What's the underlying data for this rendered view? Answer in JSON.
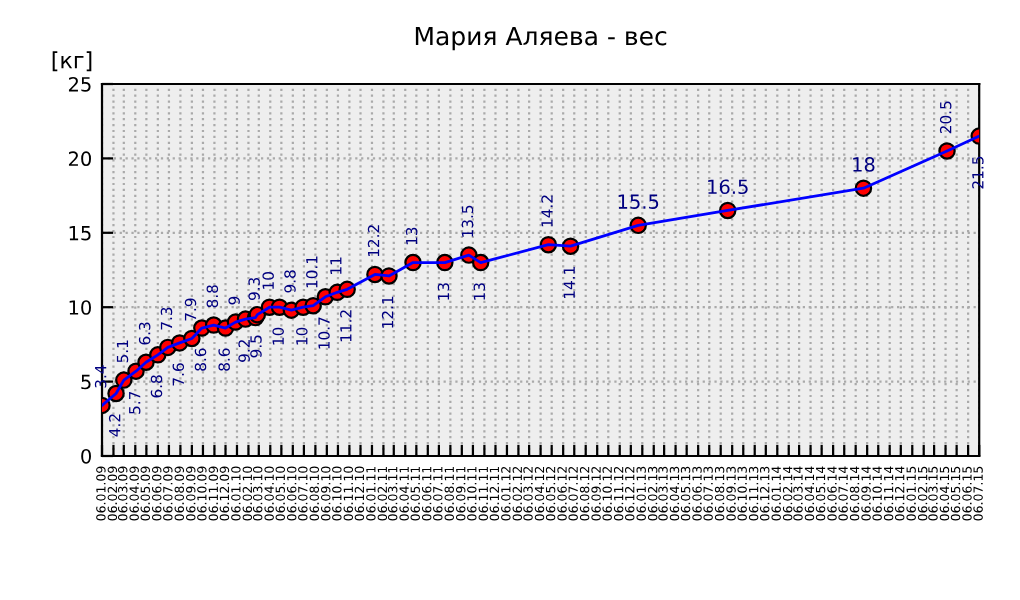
{
  "chart_data": {
    "type": "line",
    "title": "Мария Аляева - вес",
    "ylabel": "[кг]",
    "x": [
      "2009-01-06",
      "2009-02-13",
      "2009-03-06",
      "2009-04-08",
      "2009-05-05",
      "2009-06-06",
      "2009-07-03",
      "2009-08-04",
      "2009-09-06",
      "2009-10-03",
      "2009-11-04",
      "2009-12-06",
      "2010-01-02",
      "2010-01-29",
      "2010-02-25",
      "2010-03-02",
      "2010-04-04",
      "2010-05-01",
      "2010-06-02",
      "2010-07-04",
      "2010-07-31",
      "2010-09-02",
      "2010-10-04",
      "2010-10-31",
      "2011-01-14",
      "2011-02-21",
      "2011-04-27",
      "2011-07-22",
      "2011-09-25",
      "2011-10-27",
      "2012-04-27",
      "2012-06-26",
      "2012-12-26",
      "2013-08-25",
      "2014-08-27",
      "2015-04-10",
      "2015-07-06"
    ],
    "series": [
      {
        "color": "#0000ff",
        "values": [
          3.4,
          4.2,
          5.1,
          5.7,
          6.3,
          6.8,
          7.3,
          7.6,
          7.9,
          8.6,
          8.8,
          8.6,
          9,
          9.2,
          9.3,
          9.5,
          10,
          10,
          9.8,
          10,
          10.1,
          10.7,
          11,
          11.2,
          12.2,
          12.1,
          13,
          13,
          13.5,
          13,
          14.2,
          14.1,
          15.5,
          16.5,
          18,
          20.5,
          21.5
        ]
      }
    ],
    "xlim": [
      "2009-01-06",
      "2015-07-06"
    ],
    "ylim": [
      0,
      25
    ],
    "yticks": [
      0,
      5,
      10,
      15,
      20,
      25
    ],
    "xticks": [
      {
        "value": "2009-01-06",
        "label": "06.01.09"
      },
      {
        "value": "2009-02-06",
        "label": "06.02.09"
      },
      {
        "value": "2009-03-06",
        "label": "06.03.09"
      },
      {
        "value": "2009-04-06",
        "label": "06.04.09"
      },
      {
        "value": "2009-05-06",
        "label": "06.05.09"
      },
      {
        "value": "2009-06-06",
        "label": "06.06.09"
      },
      {
        "value": "2009-07-06",
        "label": "06.07.09"
      },
      {
        "value": "2009-08-06",
        "label": "06.08.09"
      },
      {
        "value": "2009-09-06",
        "label": "06.09.09"
      },
      {
        "value": "2009-10-06",
        "label": "06.10.09"
      },
      {
        "value": "2009-11-06",
        "label": "06.11.09"
      },
      {
        "value": "2009-12-06",
        "label": "06.12.09"
      },
      {
        "value": "2010-01-06",
        "label": "06.01.10"
      },
      {
        "value": "2010-02-06",
        "label": "06.02.10"
      },
      {
        "value": "2010-03-06",
        "label": "06.03.10"
      },
      {
        "value": "2010-04-06",
        "label": "06.04.10"
      },
      {
        "value": "2010-05-06",
        "label": "06.05.10"
      },
      {
        "value": "2010-06-06",
        "label": "06.06.10"
      },
      {
        "value": "2010-07-06",
        "label": "06.07.10"
      },
      {
        "value": "2010-08-06",
        "label": "06.08.10"
      },
      {
        "value": "2010-09-06",
        "label": "06.09.10"
      },
      {
        "value": "2010-10-06",
        "label": "06.10.10"
      },
      {
        "value": "2010-11-06",
        "label": "06.11.10"
      },
      {
        "value": "2010-12-06",
        "label": "06.12.10"
      },
      {
        "value": "2011-01-06",
        "label": "06.01.11"
      },
      {
        "value": "2011-02-06",
        "label": "06.02.11"
      },
      {
        "value": "2011-03-06",
        "label": "06.03.11"
      },
      {
        "value": "2011-04-06",
        "label": "06.04.11"
      },
      {
        "value": "2011-05-06",
        "label": "06.05.11"
      },
      {
        "value": "2011-06-06",
        "label": "06.06.11"
      },
      {
        "value": "2011-07-06",
        "label": "06.07.11"
      },
      {
        "value": "2011-08-06",
        "label": "06.08.11"
      },
      {
        "value": "2011-09-06",
        "label": "06.09.11"
      },
      {
        "value": "2011-10-06",
        "label": "06.10.11"
      },
      {
        "value": "2011-11-06",
        "label": "06.11.11"
      },
      {
        "value": "2011-12-06",
        "label": "06.12.11"
      },
      {
        "value": "2012-01-06",
        "label": "06.01.12"
      },
      {
        "value": "2012-02-06",
        "label": "06.02.12"
      },
      {
        "value": "2012-03-06",
        "label": "06.03.12"
      },
      {
        "value": "2012-04-06",
        "label": "06.04.12"
      },
      {
        "value": "2012-05-06",
        "label": "06.05.12"
      },
      {
        "value": "2012-06-06",
        "label": "06.06.12"
      },
      {
        "value": "2012-07-06",
        "label": "06.07.12"
      },
      {
        "value": "2012-08-06",
        "label": "06.08.12"
      },
      {
        "value": "2012-09-06",
        "label": "06.09.12"
      },
      {
        "value": "2012-10-06",
        "label": "06.10.12"
      },
      {
        "value": "2012-11-06",
        "label": "06.11.12"
      },
      {
        "value": "2012-12-06",
        "label": "06.12.12"
      },
      {
        "value": "2013-01-06",
        "label": "06.01.13"
      },
      {
        "value": "2013-02-06",
        "label": "06.02.13"
      },
      {
        "value": "2013-03-06",
        "label": "06.03.13"
      },
      {
        "value": "2013-04-06",
        "label": "06.04.13"
      },
      {
        "value": "2013-05-06",
        "label": "06.05.13"
      },
      {
        "value": "2013-06-06",
        "label": "06.06.13"
      },
      {
        "value": "2013-07-06",
        "label": "06.07.13"
      },
      {
        "value": "2013-08-06",
        "label": "06.08.13"
      },
      {
        "value": "2013-09-06",
        "label": "06.09.13"
      },
      {
        "value": "2013-10-06",
        "label": "06.10.13"
      },
      {
        "value": "2013-11-06",
        "label": "06.11.13"
      },
      {
        "value": "2013-12-06",
        "label": "06.12.13"
      },
      {
        "value": "2014-01-06",
        "label": "06.01.14"
      },
      {
        "value": "2014-02-06",
        "label": "06.02.14"
      },
      {
        "value": "2014-03-06",
        "label": "06.03.14"
      },
      {
        "value": "2014-04-06",
        "label": "06.04.14"
      },
      {
        "value": "2014-05-06",
        "label": "06.05.14"
      },
      {
        "value": "2014-06-06",
        "label": "06.06.14"
      },
      {
        "value": "2014-07-06",
        "label": "06.07.14"
      },
      {
        "value": "2014-08-06",
        "label": "06.08.14"
      },
      {
        "value": "2014-09-06",
        "label": "06.09.14"
      },
      {
        "value": "2014-10-06",
        "label": "06.10.14"
      },
      {
        "value": "2014-11-06",
        "label": "06.11.14"
      },
      {
        "value": "2014-12-06",
        "label": "06.12.14"
      },
      {
        "value": "2015-01-06",
        "label": "06.01.15"
      },
      {
        "value": "2015-02-06",
        "label": "06.02.15"
      },
      {
        "value": "2015-03-06",
        "label": "06.03.15"
      },
      {
        "value": "2015-04-06",
        "label": "06.04.15"
      },
      {
        "value": "2015-05-06",
        "label": "06.05.15"
      },
      {
        "value": "2015-06-06",
        "label": "06.06.15"
      },
      {
        "value": "2015-07-06",
        "label": "06.07.15"
      }
    ],
    "grid": true,
    "marker": "circle",
    "line_style": "solid",
    "data_labels": true
  }
}
